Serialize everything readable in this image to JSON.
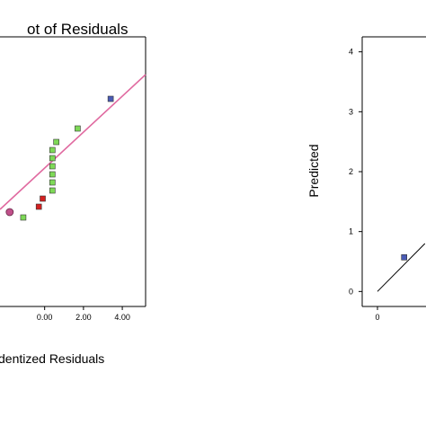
{
  "chart_data": [
    {
      "type": "scatter",
      "title": "ot of Residuals",
      "xlabel": "dentized Residuals",
      "ylabel": "",
      "xlim": [
        -2.3,
        5.2
      ],
      "ylim": [
        0,
        1
      ],
      "x_ticks": [
        {
          "value": 0.0,
          "label": "0.00"
        },
        {
          "value": 2.0,
          "label": "2.00"
        },
        {
          "value": 4.0,
          "label": "4.00"
        }
      ],
      "fit_line": {
        "x": [
          -2.3,
          5.2
        ],
        "y": [
          0.36,
          0.86
        ],
        "color": "#e06aa0"
      },
      "points": [
        {
          "x": -1.8,
          "y": 0.35,
          "color": "#c0508a",
          "shape": "circle"
        },
        {
          "x": -1.1,
          "y": 0.33,
          "color": "#7ed957",
          "shape": "square"
        },
        {
          "x": -0.3,
          "y": 0.37,
          "color": "#d42020",
          "shape": "square"
        },
        {
          "x": -0.1,
          "y": 0.4,
          "color": "#d42020",
          "shape": "square"
        },
        {
          "x": 0.4,
          "y": 0.43,
          "color": "#7ed957",
          "shape": "square"
        },
        {
          "x": 0.4,
          "y": 0.46,
          "color": "#7ed957",
          "shape": "square"
        },
        {
          "x": 0.4,
          "y": 0.49,
          "color": "#7ed957",
          "shape": "square"
        },
        {
          "x": 0.4,
          "y": 0.52,
          "color": "#7ed957",
          "shape": "square"
        },
        {
          "x": 0.4,
          "y": 0.55,
          "color": "#7ed957",
          "shape": "square"
        },
        {
          "x": 0.4,
          "y": 0.58,
          "color": "#7ed957",
          "shape": "square"
        },
        {
          "x": 0.6,
          "y": 0.61,
          "color": "#7ed957",
          "shape": "square"
        },
        {
          "x": 1.7,
          "y": 0.66,
          "color": "#7ed957",
          "shape": "square"
        },
        {
          "x": 3.4,
          "y": 0.77,
          "color": "#4a5bb5",
          "shape": "square"
        }
      ]
    },
    {
      "type": "scatter",
      "title": "",
      "xlabel": "",
      "ylabel": "Predicted",
      "xlim": [
        -0.2,
        5
      ],
      "ylim": [
        -0.25,
        4.25
      ],
      "x_ticks": [
        {
          "value": 0,
          "label": "0"
        }
      ],
      "y_ticks": [
        {
          "value": 0,
          "label": "0"
        },
        {
          "value": 1,
          "label": "1"
        },
        {
          "value": 2,
          "label": "2"
        },
        {
          "value": 3,
          "label": "3"
        },
        {
          "value": 4,
          "label": "4"
        }
      ],
      "fit_line": {
        "x": [
          0,
          0.8
        ],
        "y": [
          0,
          0.8
        ],
        "color": "#000000"
      },
      "points": [
        {
          "x": 0.45,
          "y": 0.57,
          "color": "#4a5bb5",
          "shape": "square"
        }
      ]
    }
  ]
}
